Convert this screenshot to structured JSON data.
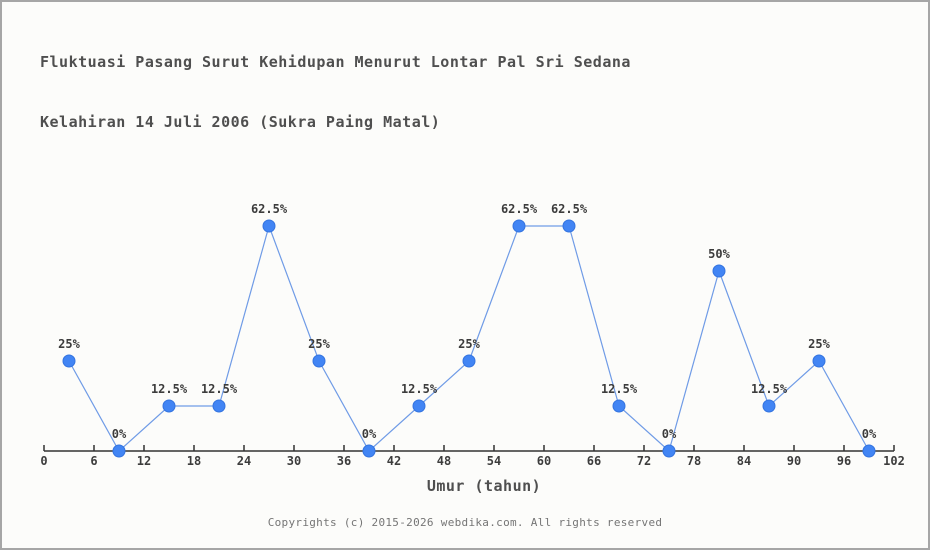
{
  "window": {
    "background": "#fcfcfa",
    "border_color": "#a6a6a6"
  },
  "chart_data": {
    "type": "line",
    "title": "Fluktuasi Pasang Surut Kehidupan Menurut Lontar Pal Sri Sedana Kelahiran 14 Juli 2006 (Sukra Paing Matal)",
    "title_line1": "Fluktuasi Pasang Surut Kehidupan Menurut Lontar Pal Sri Sedana",
    "title_line2": "Kelahiran 14 Juli 2006 (Sukra Paing Matal)",
    "xlabel": "Umur (tahun)",
    "ylabel": "",
    "x": [
      3,
      9,
      15,
      21,
      27,
      33,
      39,
      45,
      51,
      57,
      63,
      69,
      75,
      81,
      87,
      93,
      99
    ],
    "values": [
      25,
      0,
      12.5,
      12.5,
      62.5,
      25,
      0,
      12.5,
      25,
      62.5,
      62.5,
      12.5,
      0,
      50,
      12.5,
      25,
      0
    ],
    "point_labels": [
      "25%",
      "0%",
      "12.5%",
      "12.5%",
      "62.5%",
      "25%",
      "0%",
      "12.5%",
      "25%",
      "62.5%",
      "62.5%",
      "12.5%",
      "0%",
      "50%",
      "12.5%",
      "25%",
      "0%"
    ],
    "x_ticks": [
      0,
      6,
      12,
      18,
      24,
      30,
      36,
      42,
      48,
      54,
      60,
      66,
      72,
      78,
      84,
      90,
      96,
      102
    ],
    "xlim": [
      0,
      102
    ],
    "ylim": [
      0,
      100
    ],
    "grid": false,
    "legend": false,
    "colors": {
      "marker": "#4285f4",
      "marker_stroke": "#3374e0",
      "line": "#6f9be6",
      "axis": "#333333",
      "tick_label": "#3c3c3c",
      "point_label": "#3c3c3c"
    }
  },
  "footer": {
    "copyright": "Copyrights (c) 2015-2026 webdika.com. All rights reserved"
  }
}
